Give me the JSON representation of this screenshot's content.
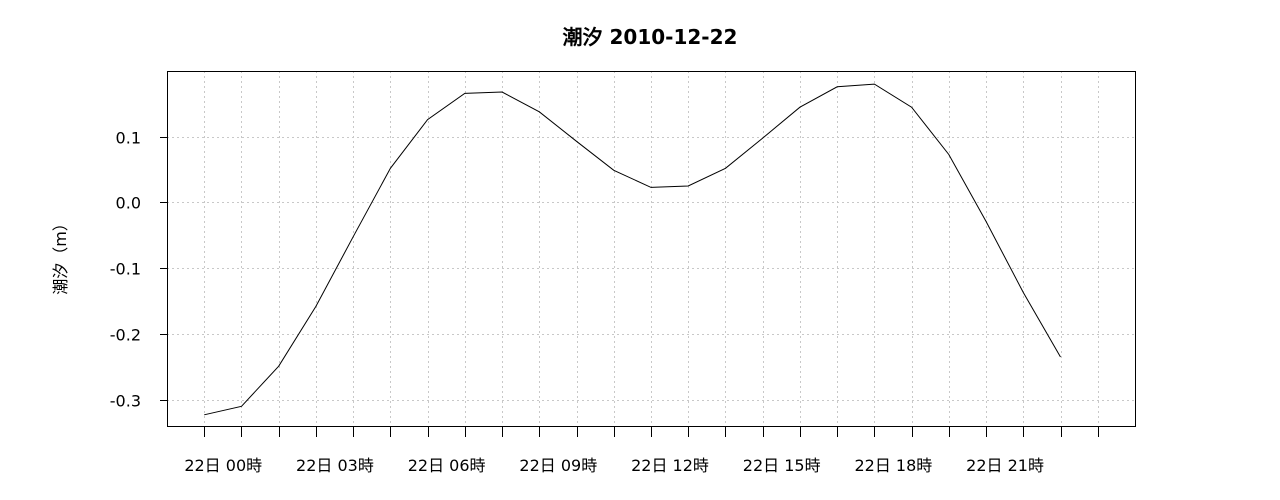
{
  "chart_data": {
    "type": "line",
    "title": "潮汐 2010-12-22",
    "ylabel": "潮汐（m）",
    "xlabel": "",
    "grid": true,
    "x_unit": "hour",
    "x_range": [
      -1,
      25
    ],
    "ylim": [
      -0.34,
      0.2
    ],
    "y_ticks": [
      0.1,
      0.0,
      -0.1,
      -0.2,
      -0.3
    ],
    "y_tick_labels": [
      "0.1",
      "0.0",
      "-0.1",
      "-0.2",
      "-0.3"
    ],
    "x_ticks": [
      0,
      1,
      2,
      3,
      4,
      5,
      6,
      7,
      8,
      9,
      10,
      11,
      12,
      13,
      14,
      15,
      16,
      17,
      18,
      19,
      20,
      21,
      22,
      23,
      24
    ],
    "x_tick_labels": [
      {
        "x": 0,
        "label": "22日 00時"
      },
      {
        "x": 3,
        "label": "22日 03時"
      },
      {
        "x": 6,
        "label": "22日 06時"
      },
      {
        "x": 9,
        "label": "22日 09時"
      },
      {
        "x": 12,
        "label": "22日 12時"
      },
      {
        "x": 15,
        "label": "22日 15時"
      },
      {
        "x": 18,
        "label": "22日 18時"
      },
      {
        "x": 21,
        "label": "22日 21時"
      }
    ],
    "series": [
      {
        "x": [
          0,
          1,
          2,
          3,
          4,
          5,
          6,
          7,
          8,
          9,
          10,
          11,
          12,
          13,
          14,
          15,
          16,
          17,
          18,
          19,
          20,
          21,
          22,
          23
        ],
        "values": [
          -0.323,
          -0.31,
          -0.249,
          -0.158,
          -0.052,
          0.052,
          0.126,
          0.166,
          0.168,
          0.138,
          0.093,
          0.049,
          0.023,
          0.025,
          0.052,
          0.098,
          0.145,
          0.176,
          0.18,
          0.145,
          0.073,
          -0.029,
          -0.137,
          -0.235
        ],
        "color": "#000000"
      }
    ]
  }
}
